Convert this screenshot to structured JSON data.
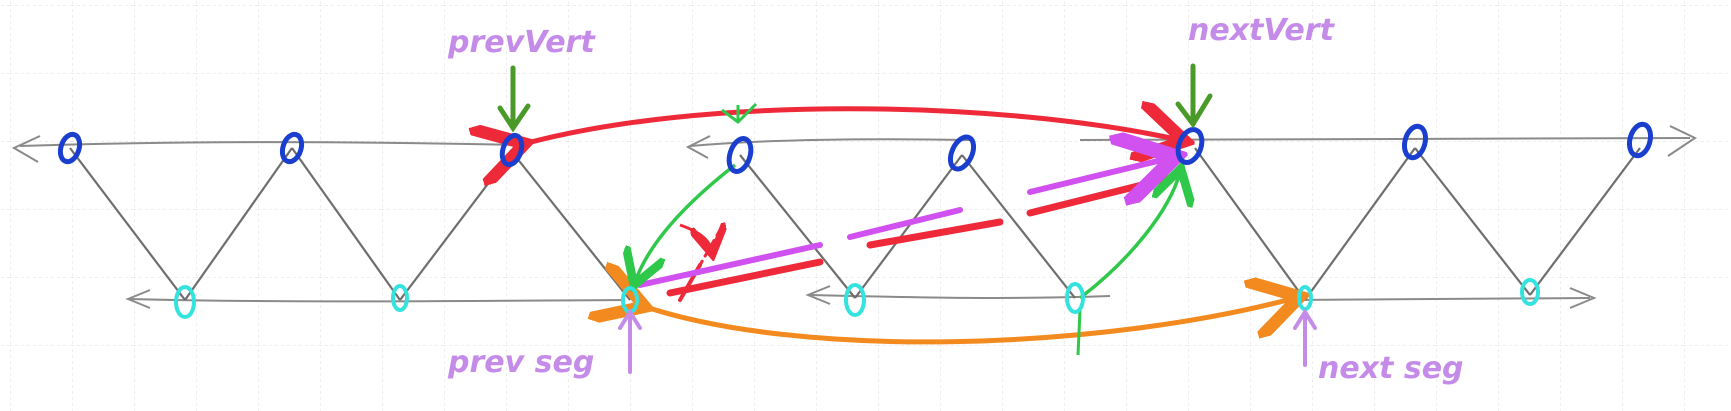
{
  "labels": {
    "prev_vert": "prevVert",
    "next_vert": "nextVert",
    "prev_seg": "prev seg",
    "next_seg": "next seg"
  },
  "colors": {
    "grid": "#dcdcdc",
    "line": "#8a8a8a",
    "dark_line": "#555555",
    "vertex": "#1a3fcf",
    "segment": "#34e2de",
    "green": "#2fc84a",
    "dark_green": "#4a9a2a",
    "red": "#ee2a3a",
    "magenta": "#d050f0",
    "orange": "#f38a1f",
    "label": "#c58be9"
  },
  "top_row_vertices": 8,
  "bottom_row_segments": 7
}
